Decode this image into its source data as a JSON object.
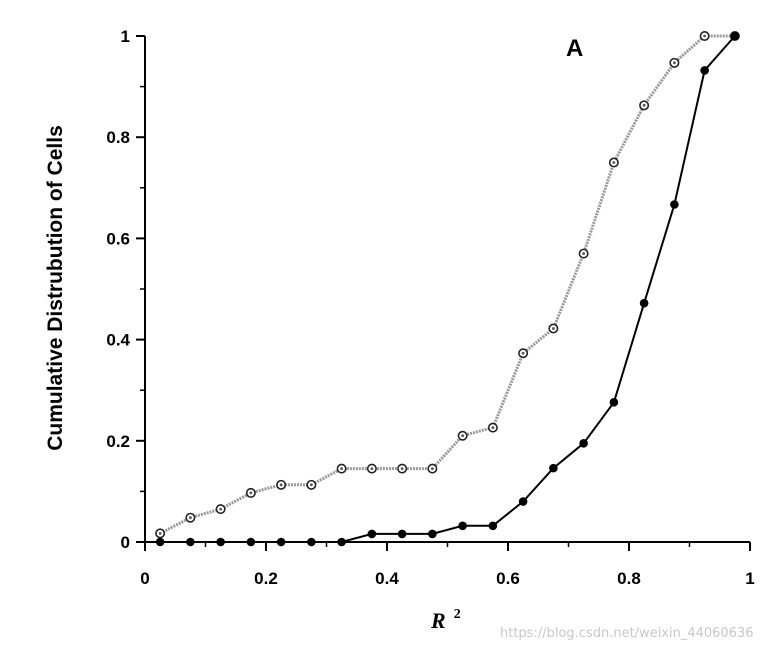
{
  "chart_data": {
    "type": "line",
    "panel_label": "A",
    "xlabel": "R",
    "xlabel_superscript": "2",
    "ylabel": "Cumulative Distrubution of Cells",
    "xlim": [
      0,
      1
    ],
    "ylim": [
      0,
      1
    ],
    "x_ticks": [
      "0",
      "0.2",
      "0.4",
      "0.6",
      "0.8",
      "1"
    ],
    "y_ticks": [
      "0",
      "0.2",
      "0.4",
      "0.6",
      "0.8",
      "1"
    ],
    "grid": false,
    "x": [
      0.025,
      0.075,
      0.125,
      0.175,
      0.225,
      0.275,
      0.325,
      0.375,
      0.425,
      0.475,
      0.525,
      0.575,
      0.625,
      0.675,
      0.725,
      0.775,
      0.825,
      0.875,
      0.925,
      0.975
    ],
    "series": [
      {
        "style": "open-marker",
        "color": "#999999",
        "values": [
          0.017,
          0.048,
          0.065,
          0.097,
          0.113,
          0.113,
          0.145,
          0.145,
          0.145,
          0.145,
          0.21,
          0.226,
          0.373,
          0.422,
          0.57,
          0.75,
          0.863,
          0.947,
          1.0,
          1.0
        ]
      },
      {
        "style": "filled-marker",
        "color": "#000000",
        "values": [
          0.0,
          0.0,
          0.0,
          0.0,
          0.0,
          0.0,
          0.0,
          0.016,
          0.016,
          0.016,
          0.032,
          0.032,
          0.08,
          0.146,
          0.195,
          0.276,
          0.472,
          0.667,
          0.932,
          1.0
        ]
      }
    ]
  },
  "watermark": "https://blog.csdn.net/weixin_44060636"
}
